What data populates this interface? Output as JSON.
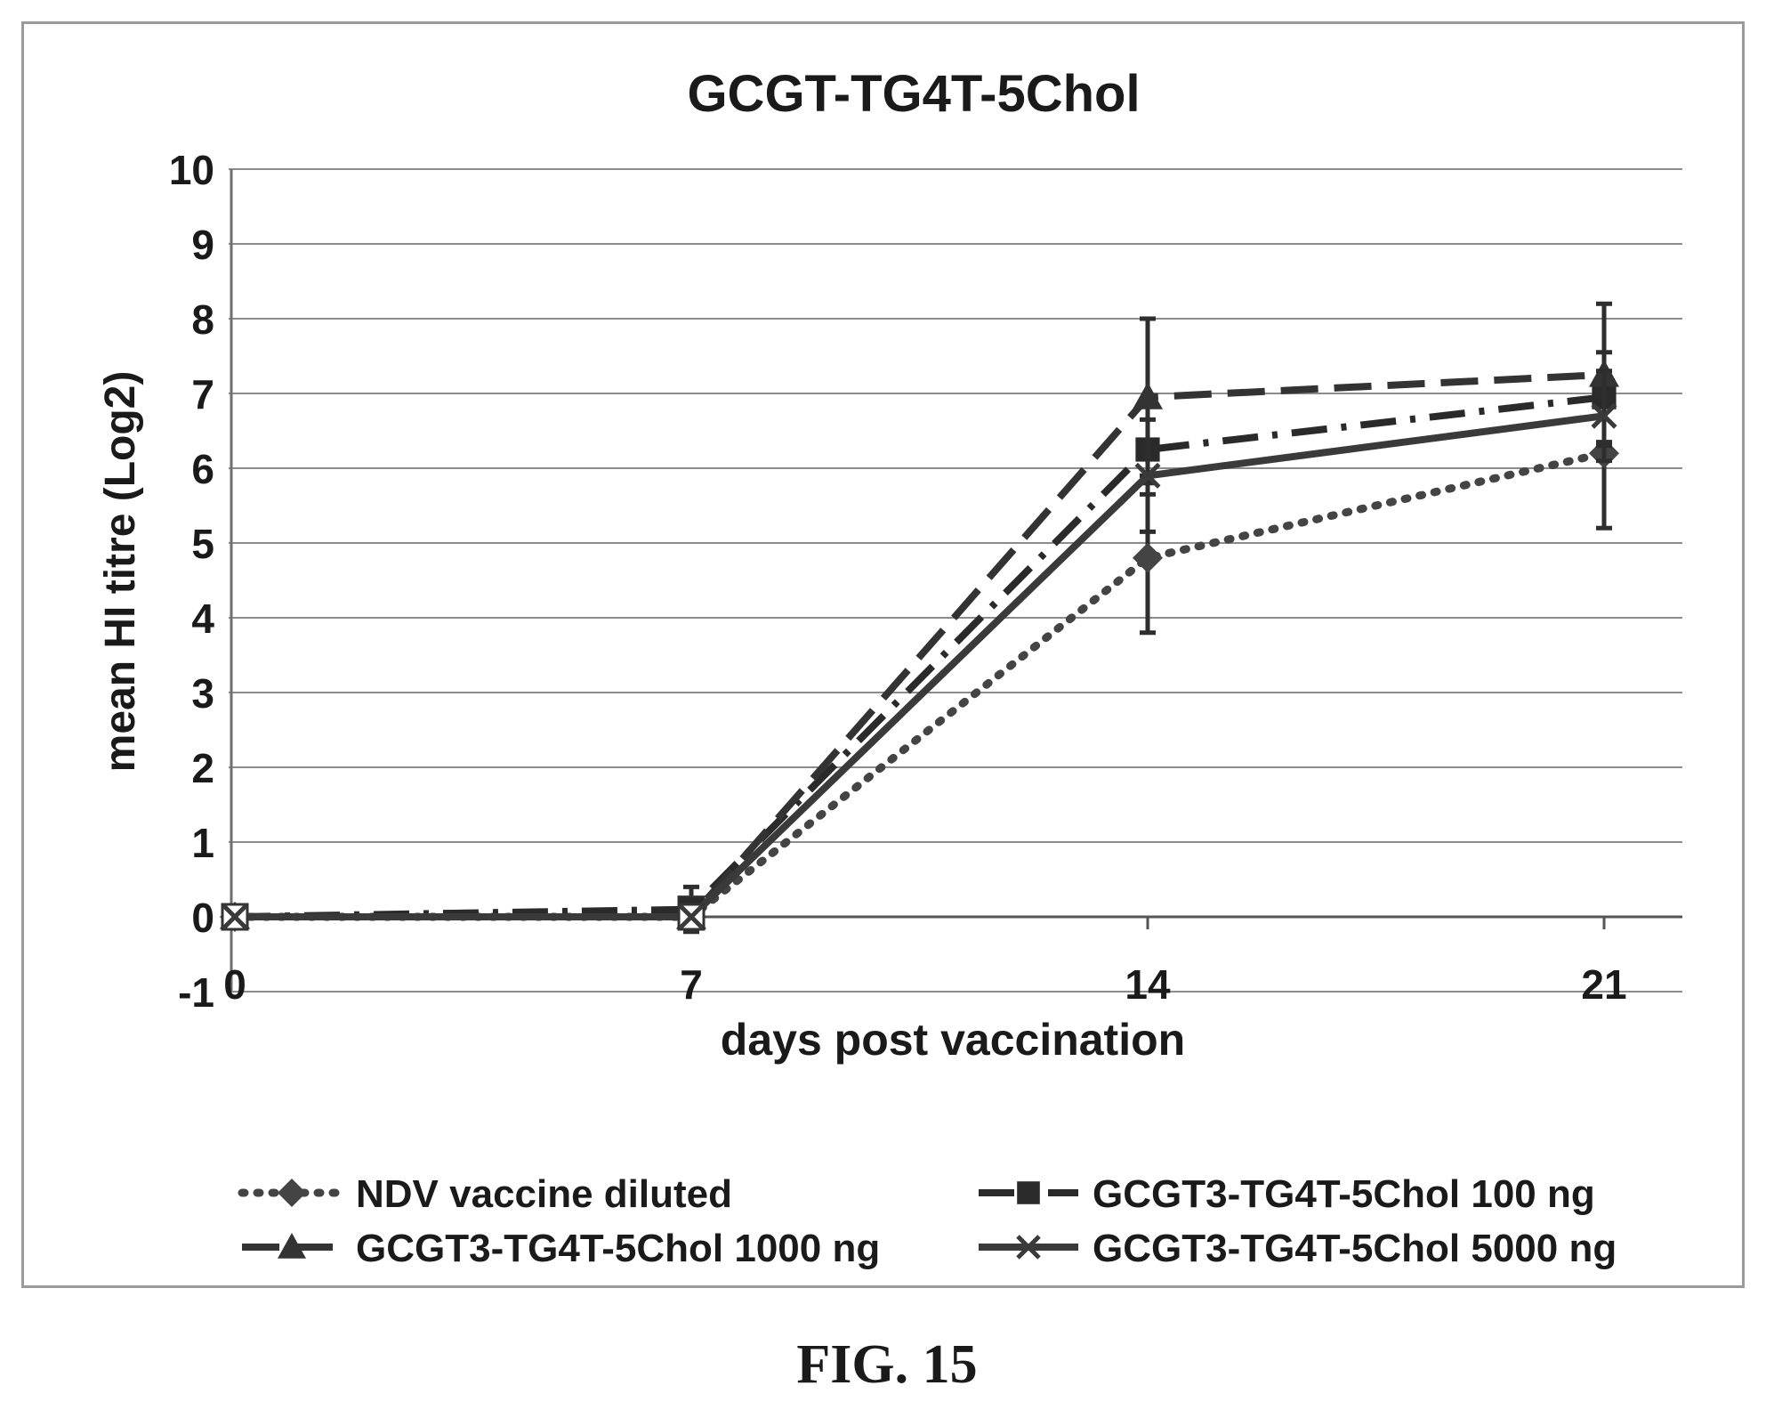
{
  "figure_caption": "FIG. 15",
  "chart_data": {
    "type": "line",
    "title": "GCGT-TG4T-5Chol",
    "xlabel": "days post vaccination",
    "ylabel": "mean HI titre (Log2)",
    "x": [
      0,
      7,
      14,
      21
    ],
    "x_ticks": [
      "0",
      "7",
      "14",
      "21"
    ],
    "ylim": [
      -1,
      10
    ],
    "y_ticks": [
      "-1",
      "0",
      "1",
      "2",
      "3",
      "4",
      "5",
      "6",
      "7",
      "8",
      "9",
      "10"
    ],
    "grid": true,
    "legend_position": "bottom",
    "series": [
      {
        "name": "NDV vaccine diluted",
        "values": [
          0,
          0,
          4.8,
          6.2
        ],
        "error": [
          0,
          0,
          1.0,
          1.0
        ],
        "marker": "diamond",
        "line_style": "dotted",
        "color": "#444444"
      },
      {
        "name": "GCGT3-TG4T-5Chol 100 ng",
        "values": [
          0,
          0.1,
          6.25,
          6.95
        ],
        "error": [
          0,
          0.3,
          0.6,
          0.6
        ],
        "marker": "square",
        "line_style": "dash-dot",
        "color": "#2a2a2a"
      },
      {
        "name": "GCGT3-TG4T-5Chol 1000 ng",
        "values": [
          0,
          0,
          6.95,
          7.25
        ],
        "error": [
          0,
          0,
          1.05,
          0.95
        ],
        "marker": "triangle",
        "line_style": "dashed",
        "color": "#333333"
      },
      {
        "name": "GCGT3-TG4T-5Chol 5000 ng",
        "values": [
          0,
          0,
          5.9,
          6.7
        ],
        "error": [
          0,
          0,
          0.75,
          0.6
        ],
        "marker": "x",
        "line_style": "solid",
        "color": "#3a3a3a"
      }
    ]
  }
}
